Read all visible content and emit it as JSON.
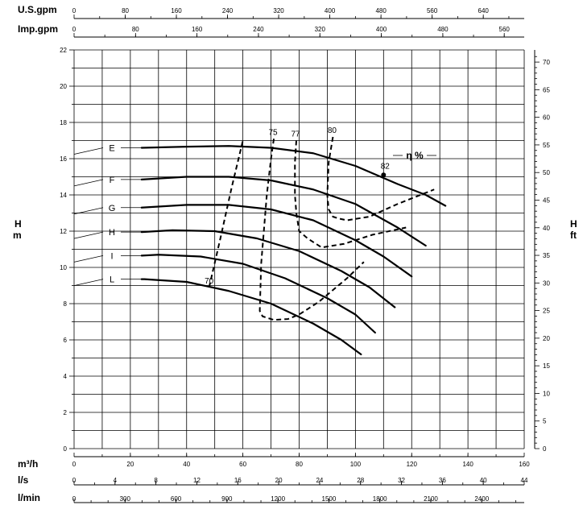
{
  "chart_data": {
    "type": "line",
    "title": "",
    "unit_labels": {
      "usgpm": "U.S.gpm",
      "impgpm": "Imp.gpm",
      "m3h": "m³/h",
      "ls": "l/s",
      "lmin": "l/min",
      "h_left": "H",
      "h_left_unit": "m",
      "h_right": "H",
      "h_right_unit": "ft"
    },
    "axes": {
      "x_main": {
        "unit": "m³/h",
        "range": [
          0,
          160
        ],
        "ticks": [
          "0",
          "20",
          "40",
          "60",
          "80",
          "100",
          "120",
          "140",
          "160"
        ]
      },
      "x_ls": {
        "unit": "l/s",
        "range": [
          0,
          44
        ],
        "ticks": [
          "0",
          "4",
          "8",
          "12",
          "16",
          "20",
          "24",
          "28",
          "32",
          "36",
          "40",
          "44"
        ]
      },
      "x_lmin": {
        "unit": "l/min",
        "range": [
          0,
          2650
        ],
        "ticks": [
          "0",
          "300",
          "600",
          "900",
          "1200",
          "1500",
          "1800",
          "2100",
          "2400"
        ]
      },
      "x_usgpm": {
        "unit": "U.S.gpm",
        "range": [
          0,
          704
        ],
        "ticks": [
          "0",
          "80",
          "160",
          "240",
          "320",
          "400",
          "480",
          "560",
          "640"
        ]
      },
      "x_impgpm": {
        "unit": "Imp.gpm",
        "range": [
          0,
          586
        ],
        "ticks": [
          "0",
          "80",
          "160",
          "240",
          "320",
          "400",
          "480",
          "560"
        ]
      },
      "y_left": {
        "unit": "m",
        "range": [
          0,
          22
        ],
        "ticks": [
          "0",
          "2",
          "4",
          "6",
          "8",
          "10",
          "12",
          "14",
          "16",
          "18",
          "20",
          "22"
        ]
      },
      "y_right": {
        "unit": "ft",
        "range": [
          0,
          72.2
        ],
        "ticks": [
          "0",
          "5",
          "10",
          "15",
          "20",
          "25",
          "30",
          "35",
          "40",
          "45",
          "50",
          "55",
          "60",
          "65",
          "70"
        ]
      }
    },
    "grid": true,
    "series": [
      {
        "name": "E",
        "x": [
          24,
          40,
          55,
          70,
          85,
          100,
          115,
          125,
          132
        ],
        "y": [
          16.6,
          16.66,
          16.7,
          16.6,
          16.3,
          15.6,
          14.6,
          14.0,
          13.4
        ]
      },
      {
        "name": "F",
        "x": [
          24,
          40,
          55,
          70,
          85,
          100,
          115,
          125
        ],
        "y": [
          14.85,
          15.0,
          15.0,
          14.8,
          14.3,
          13.5,
          12.2,
          11.2
        ]
      },
      {
        "name": "G",
        "x": [
          24,
          40,
          55,
          70,
          85,
          100,
          110,
          120
        ],
        "y": [
          13.3,
          13.45,
          13.45,
          13.2,
          12.6,
          11.5,
          10.6,
          9.5
        ]
      },
      {
        "name": "H",
        "x": [
          24,
          35,
          50,
          65,
          80,
          95,
          105,
          114
        ],
        "y": [
          11.95,
          12.05,
          12.0,
          11.6,
          10.9,
          9.8,
          8.9,
          7.8
        ]
      },
      {
        "name": "I",
        "x": [
          24,
          30,
          45,
          60,
          75,
          90,
          100,
          107
        ],
        "y": [
          10.65,
          10.7,
          10.6,
          10.2,
          9.4,
          8.3,
          7.4,
          6.4
        ]
      },
      {
        "name": "L",
        "x": [
          24,
          25,
          40,
          55,
          70,
          85,
          95,
          102
        ],
        "y": [
          9.35,
          9.35,
          9.2,
          8.7,
          8.0,
          6.9,
          6.0,
          5.2
        ]
      }
    ],
    "efficiency_curves": [
      {
        "name": "70",
        "x": [
          48,
          52,
          56,
          60
        ],
        "y": [
          8.9,
          11.6,
          14.4,
          17.0
        ]
      },
      {
        "name": "75",
        "x": [
          71,
          70,
          68.5,
          66.5,
          66,
          67,
          71,
          76,
          80,
          87,
          97,
          103
        ],
        "y": [
          17.1,
          16.0,
          14.0,
          10.2,
          7.6,
          7.3,
          7.1,
          7.15,
          7.4,
          8.1,
          9.4,
          10.3
        ]
      },
      {
        "name": "77",
        "x": [
          79,
          78.5,
          78.5,
          79,
          80,
          83,
          88,
          96,
          106,
          118
        ],
        "y": [
          17.0,
          15.8,
          14.0,
          13.0,
          12.0,
          11.6,
          11.1,
          11.3,
          11.8,
          12.2
        ]
      },
      {
        "name": "80",
        "x": [
          92,
          90.5,
          90,
          90.5,
          92,
          94,
          97,
          105,
          115,
          128
        ],
        "y": [
          17.2,
          15.8,
          14.0,
          13.2,
          12.8,
          12.7,
          12.6,
          12.8,
          13.5,
          14.3
        ]
      }
    ],
    "efficiency_unit_label": "η %",
    "efficiency_marker": {
      "label": "82",
      "x": 110,
      "y": 15.1
    }
  }
}
